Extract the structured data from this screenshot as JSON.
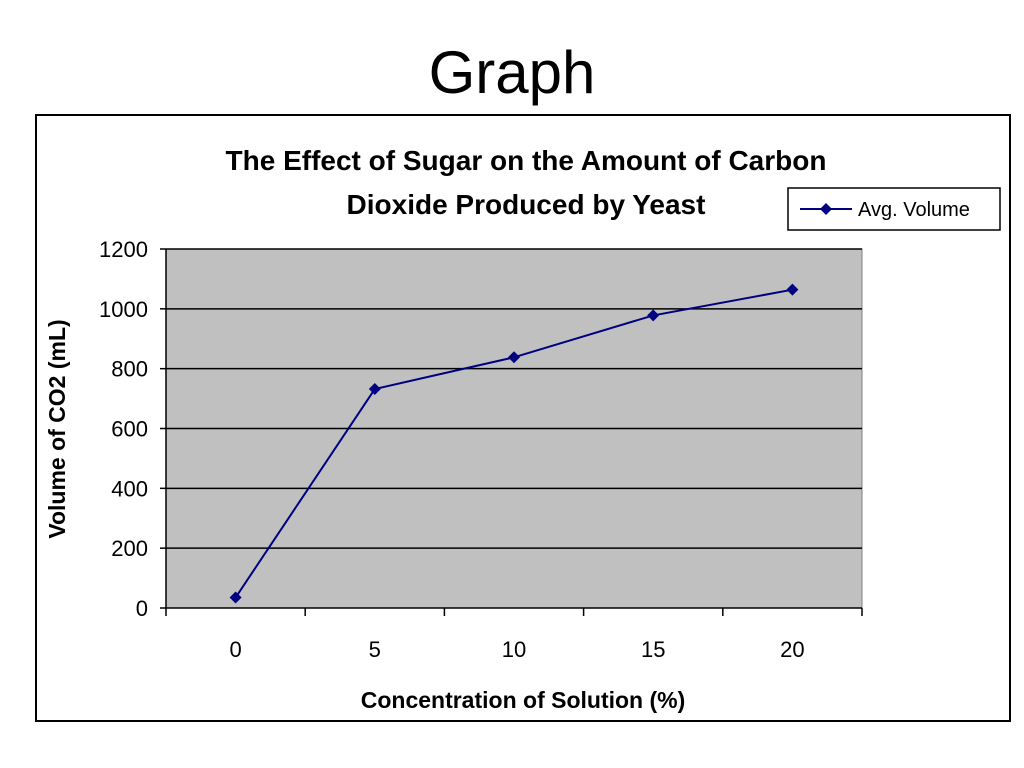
{
  "slide": {
    "title": "Graph"
  },
  "chart_data": {
    "type": "line",
    "title_lines": [
      "The Effect of Sugar on the Amount of Carbon",
      "Dioxide Produced by Yeast"
    ],
    "xlabel": "Concentration of Solution (%)",
    "ylabel": "Volume of CO2 (mL)",
    "categories": [
      "0",
      "5",
      "10",
      "15",
      "20"
    ],
    "series": [
      {
        "name": "Avg. Volume",
        "values": [
          35,
          732,
          838,
          978,
          1064
        ],
        "color": "#000080",
        "marker": "diamond"
      }
    ],
    "ylim": [
      0,
      1200
    ],
    "yticks": [
      0,
      200,
      400,
      600,
      800,
      1000,
      1200
    ],
    "grid": true,
    "plot_background": "#c0c0c0",
    "legend_position": "top-right"
  }
}
